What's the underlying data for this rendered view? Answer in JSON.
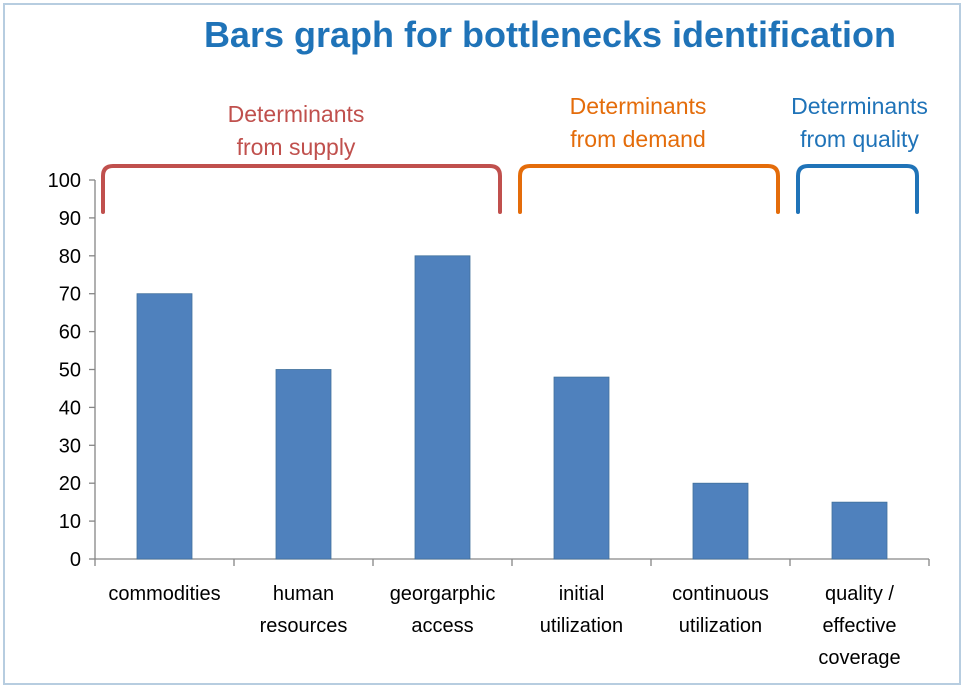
{
  "chart_data": {
    "type": "bar",
    "title": "Bars graph for bottlenecks identification",
    "categories": [
      [
        "commodities"
      ],
      [
        "human",
        "resources"
      ],
      [
        "georgarphic",
        "access"
      ],
      [
        "initial",
        "utilization"
      ],
      [
        "continuous",
        "utilization"
      ],
      [
        "quality /",
        "effective",
        "coverage"
      ]
    ],
    "values": [
      70,
      50,
      80,
      48,
      20,
      15
    ],
    "ylim": [
      0,
      100
    ],
    "yticks": [
      0,
      10,
      20,
      30,
      40,
      50,
      60,
      70,
      80,
      90,
      100
    ],
    "xlabel": "",
    "ylabel": "",
    "grid": false,
    "bar_color": "#4f81bd",
    "groups": [
      {
        "line1": "Determinants",
        "line2": "from supply",
        "color": "#c0504d",
        "first": 0,
        "last": 2
      },
      {
        "line1": "Determinants",
        "line2": "from demand",
        "color": "#e46c0a",
        "first": 3,
        "last": 4
      },
      {
        "line1": "Determinants",
        "line2": "from quality",
        "color": "#1f73b8",
        "first": 5,
        "last": 5
      }
    ]
  }
}
